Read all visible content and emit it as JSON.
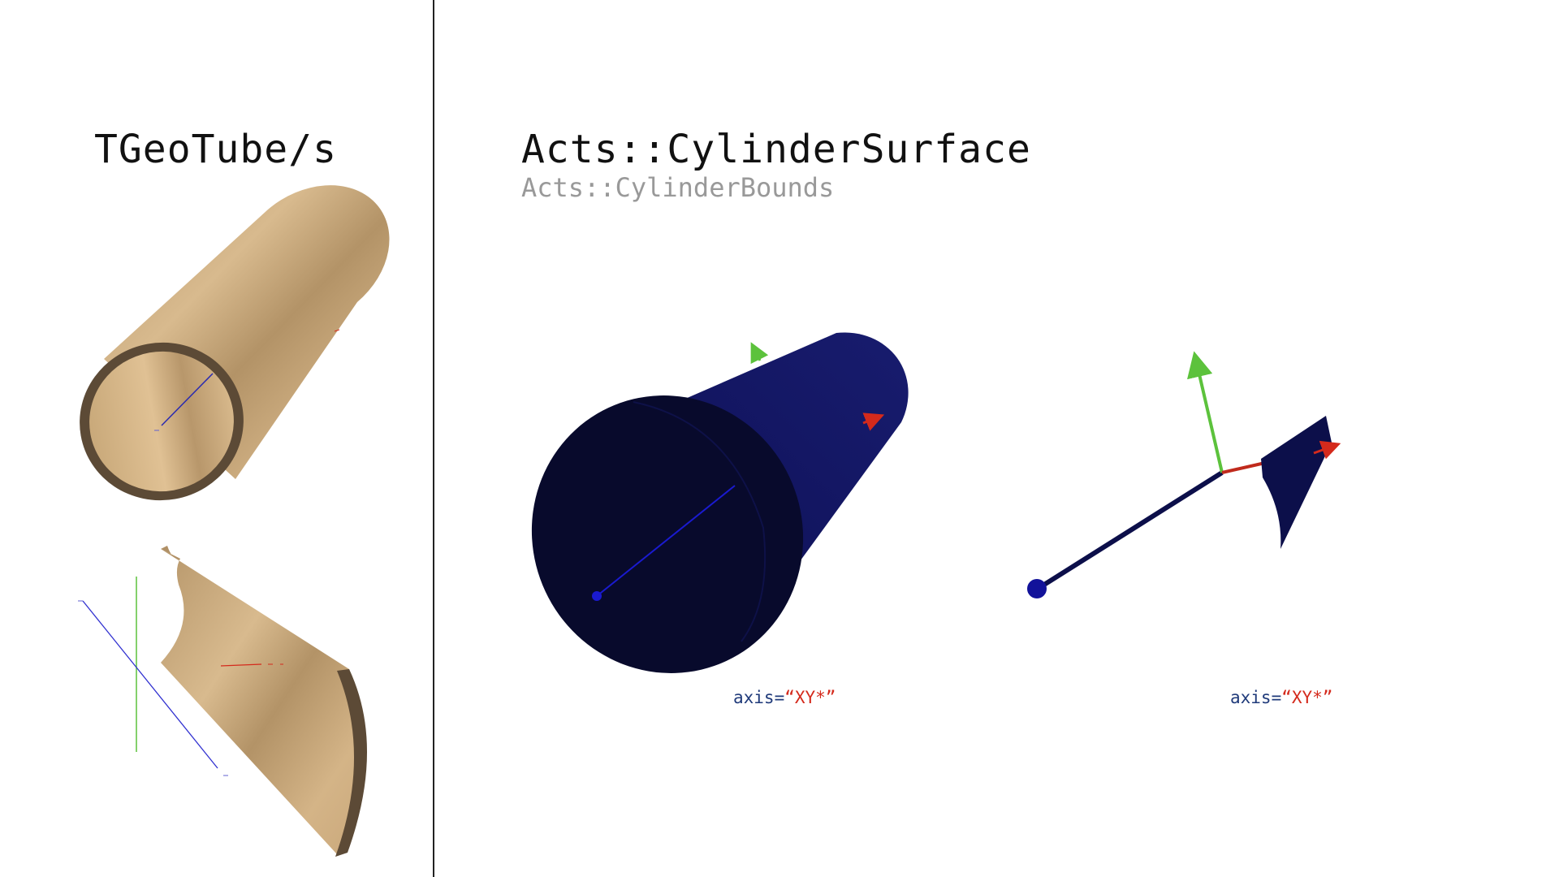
{
  "left_panel": {
    "title": "TGeoTube/s"
  },
  "right_panel": {
    "title": "Acts::CylinderSurface",
    "subtitle": "Acts::CylinderBounds",
    "views": [
      {
        "axis_key": "axis=",
        "axis_value": "“XY*”"
      },
      {
        "axis_key": "axis=",
        "axis_value": "“XY*”"
      }
    ]
  },
  "colors": {
    "tube_tan": "#c9a97c",
    "tube_rim": "#5c4a36",
    "surface_navy": "#0c0f4a",
    "axis_x": "#d42a1c",
    "axis_y": "#5cc23c",
    "axis_z": "#1a1aa0"
  }
}
